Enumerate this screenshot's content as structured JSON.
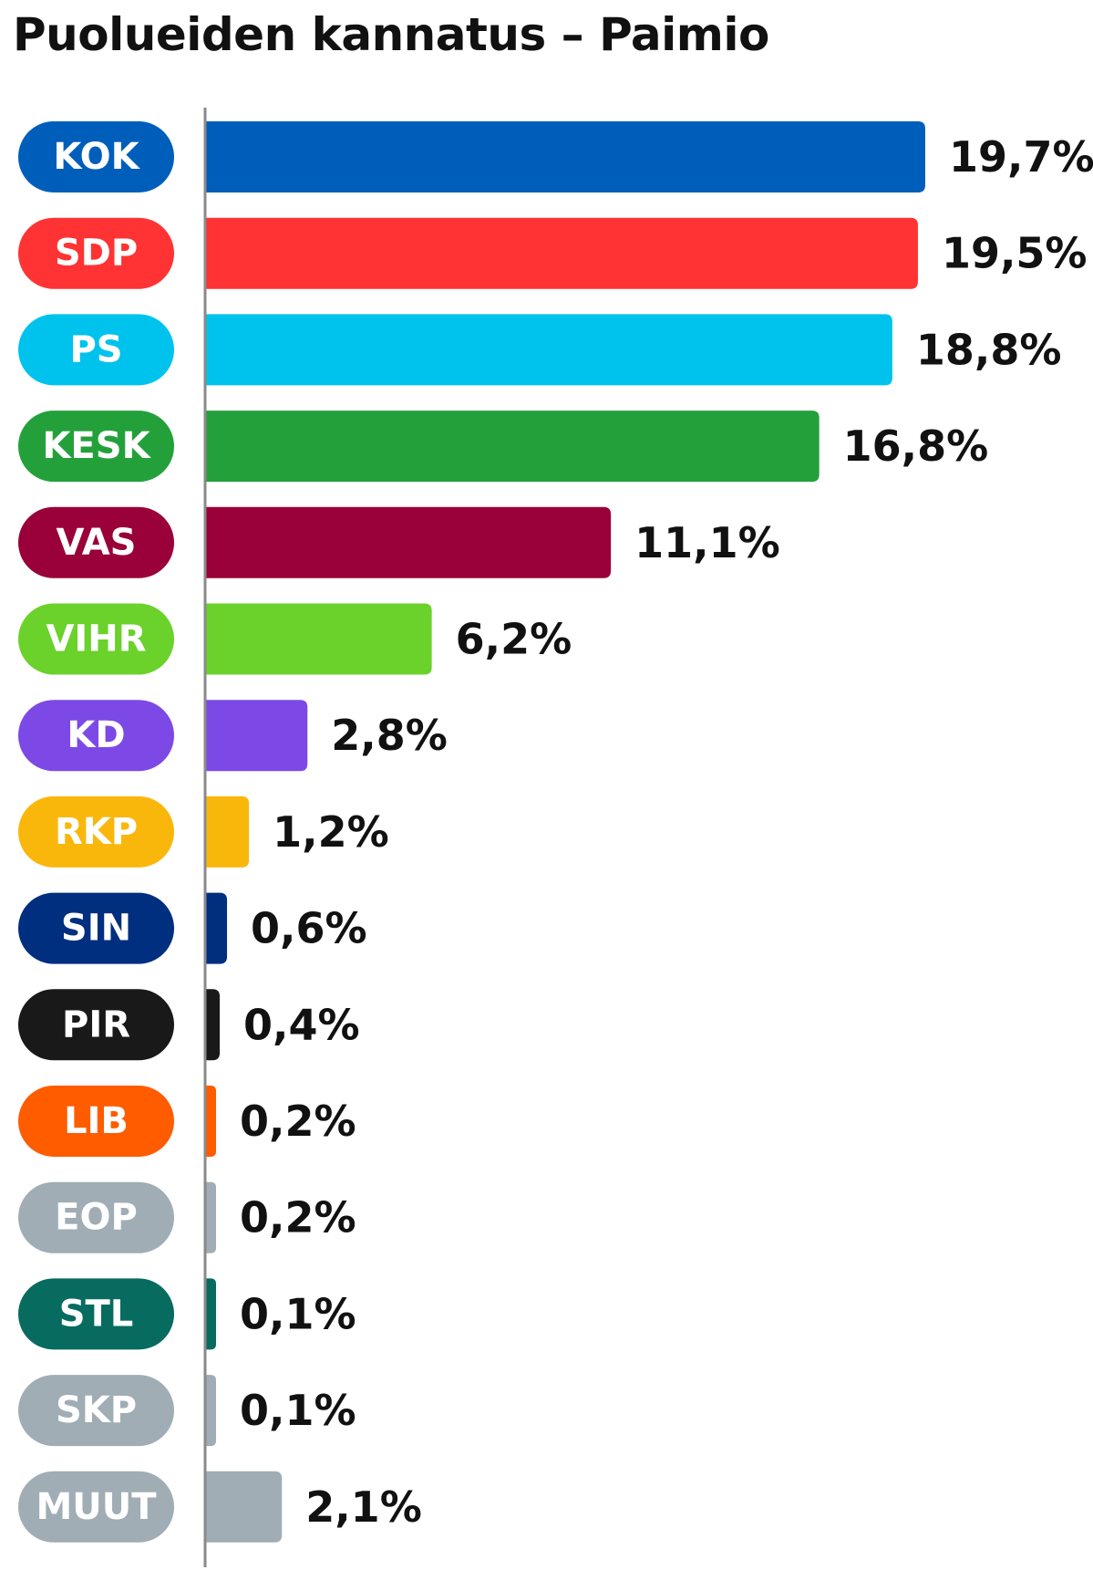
{
  "title": "Puolueiden kannatus – Paimio",
  "chart_data": {
    "type": "bar",
    "orientation": "horizontal",
    "title": "Puolueiden kannatus – Paimio",
    "categories": [
      "KOK",
      "SDP",
      "PS",
      "KESK",
      "VAS",
      "VIHR",
      "KD",
      "RKP",
      "SIN",
      "PIR",
      "LIB",
      "EOP",
      "STL",
      "SKP",
      "MUUT"
    ],
    "values": [
      19.7,
      19.5,
      18.8,
      16.8,
      11.1,
      6.2,
      2.8,
      1.2,
      0.6,
      0.4,
      0.2,
      0.2,
      0.1,
      0.1,
      2.1
    ],
    "value_labels": [
      "19,7%",
      "19,5%",
      "18,8%",
      "16,8%",
      "11,1%",
      "6,2%",
      "2,8%",
      "1,2%",
      "0,6%",
      "0,4%",
      "0,2%",
      "0,2%",
      "0,1%",
      "0,1%",
      "2,1%"
    ],
    "colors": [
      "#005ebb",
      "#ff3333",
      "#00c3ed",
      "#24a03b",
      "#9a0039",
      "#6bd12b",
      "#7c49e6",
      "#fab70b",
      "#002f7f",
      "#191919",
      "#ff5c00",
      "#a0adb5",
      "#076b60",
      "#a0adb5",
      "#a0adb5"
    ],
    "xlim": [
      0,
      20
    ],
    "grid": false,
    "legend": "none"
  }
}
